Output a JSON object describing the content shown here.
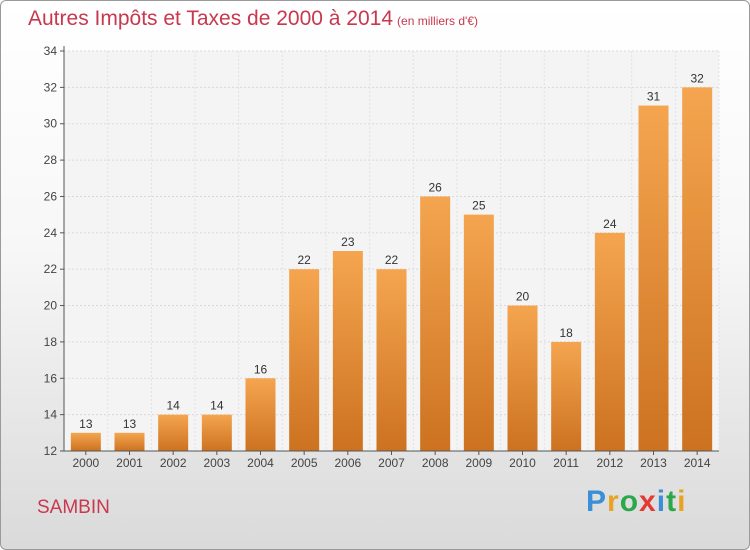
{
  "title": "Autres Impôts et Taxes de 2000 à 2014",
  "subtitle": "(en milliers d'€)",
  "commune": "SAMBIN",
  "brand": {
    "letters": [
      "P",
      "r",
      "o",
      "x",
      "i",
      "t",
      "i"
    ],
    "colors": [
      "#3a8fd6",
      "#e8a324",
      "#2aa84a",
      "#e53935",
      "#3a8fd6",
      "#2aa84a",
      "#e8a324"
    ]
  },
  "chart_data": {
    "type": "bar",
    "categories": [
      "2000",
      "2001",
      "2002",
      "2003",
      "2004",
      "2005",
      "2006",
      "2007",
      "2008",
      "2009",
      "2010",
      "2011",
      "2012",
      "2013",
      "2014"
    ],
    "values": [
      13,
      13,
      14,
      14,
      16,
      22,
      23,
      22,
      26,
      25,
      20,
      18,
      24,
      31,
      32
    ],
    "title": "Autres Impôts et Taxes de 2000 à 2014",
    "subtitle": "(en milliers d'€)",
    "ylim": [
      12,
      34
    ],
    "yticks": [
      12,
      14,
      16,
      18,
      20,
      22,
      24,
      26,
      28,
      30,
      32,
      34
    ],
    "grid": true,
    "bar_color_top": "#f5a54f",
    "bar_color_bottom": "#cc7220"
  }
}
